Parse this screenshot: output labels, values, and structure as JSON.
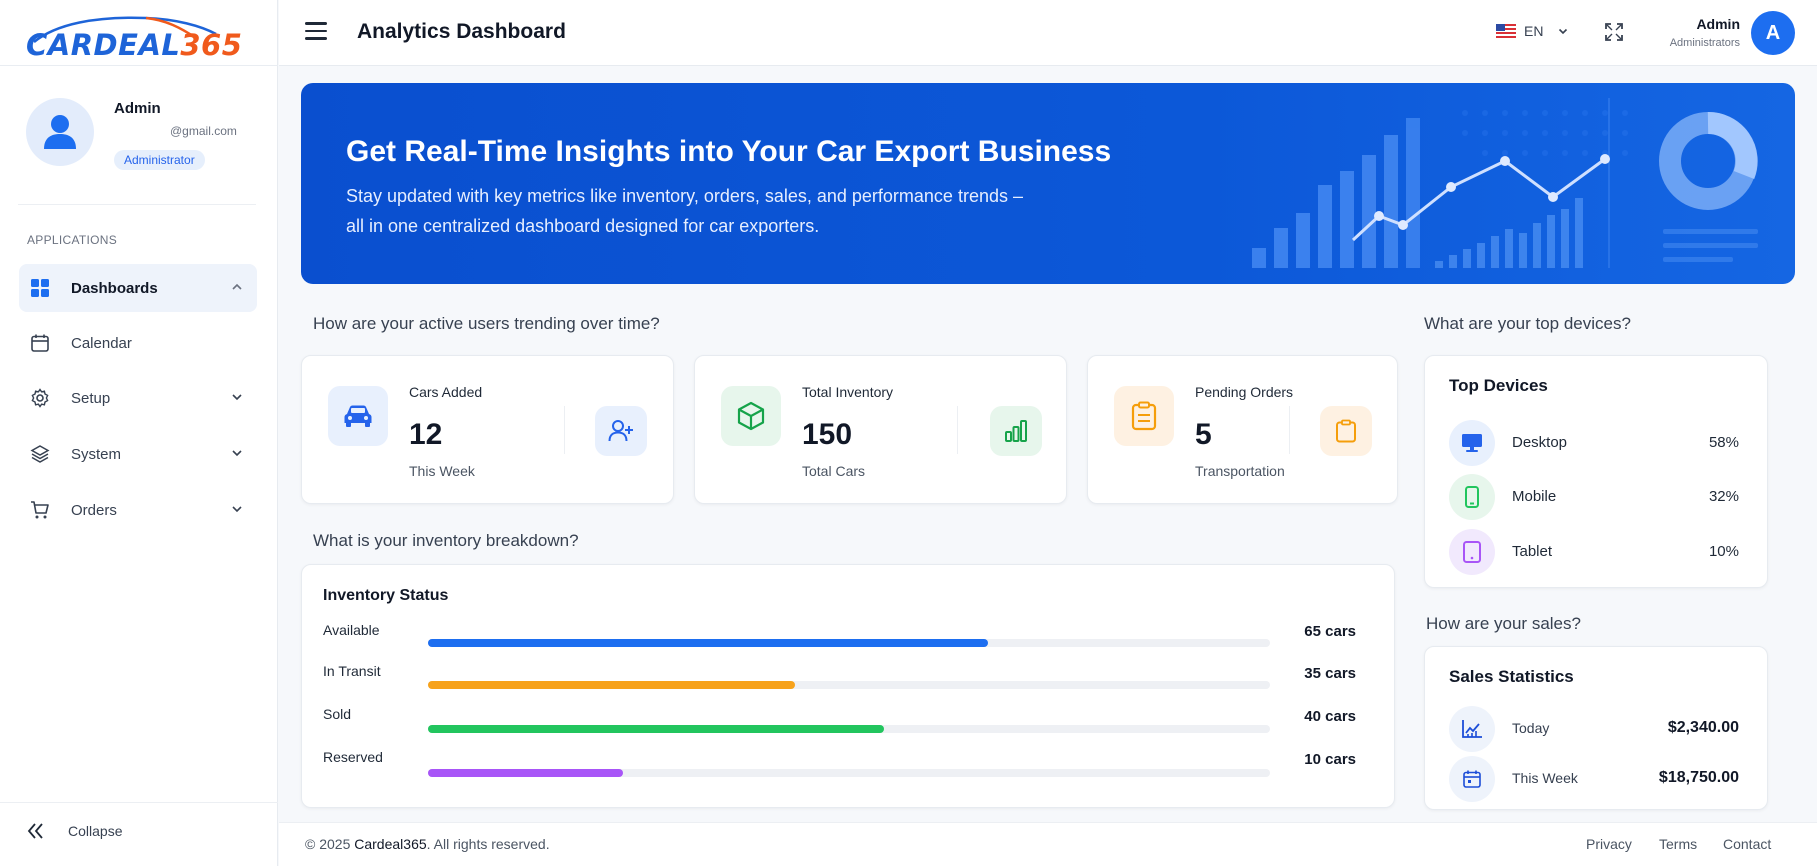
{
  "brand": {
    "logo_left": "CARDEAL",
    "logo_right": "365"
  },
  "profile": {
    "name": "Admin",
    "email": "@gmail.com",
    "role": "Administrator"
  },
  "sidebar": {
    "section": "APPLICATIONS",
    "items": [
      {
        "label": "Dashboards",
        "icon": "grid-icon",
        "active": true
      },
      {
        "label": "Calendar",
        "icon": "calendar-icon"
      },
      {
        "label": "Setup",
        "icon": "gear-icon"
      },
      {
        "label": "System",
        "icon": "layers-icon"
      },
      {
        "label": "Orders",
        "icon": "cart-icon"
      }
    ],
    "collapse_label": "Collapse"
  },
  "topbar": {
    "title": "Analytics Dashboard",
    "language": "EN",
    "user_name": "Admin",
    "user_role": "Administrators",
    "avatar_letter": "A"
  },
  "hero": {
    "title": "Get Real-Time Insights into Your Car Export Business",
    "subtitle_line1": "Stay updated with key metrics like inventory, orders, sales, and performance trends –",
    "subtitle_line2": "all in one centralized dashboard designed for car exporters."
  },
  "questions": {
    "users": "How are your active users trending over time?",
    "inventory": "What is your inventory breakdown?",
    "devices": "What are your top devices?",
    "sales": "How are your sales?"
  },
  "stats": [
    {
      "title": "Cars Added",
      "value": "12",
      "sub": "This Week",
      "color": "#2563eb",
      "bg": "#e8f0fd"
    },
    {
      "title": "Total Inventory",
      "value": "150",
      "sub": "Total Cars",
      "color": "#16a34a",
      "bg": "#e7f6ec"
    },
    {
      "title": "Pending Orders",
      "value": "5",
      "sub": "Transportation",
      "color": "#f59e0b",
      "bg": "#fef1e2"
    }
  ],
  "inventory": {
    "title": "Inventory Status",
    "rows": [
      {
        "label": "Available",
        "count": "65 cars",
        "fraction": 0.665,
        "color": "#1d6ef0"
      },
      {
        "label": "In Transit",
        "count": "35 cars",
        "fraction": 0.436,
        "color": "#f7a21b"
      },
      {
        "label": "Sold",
        "count": "40 cars",
        "fraction": 0.541,
        "color": "#22c55e"
      },
      {
        "label": "Reserved",
        "count": "10 cars",
        "fraction": 0.231,
        "color": "#a855f7"
      }
    ]
  },
  "devices": {
    "title": "Top Devices",
    "rows": [
      {
        "label": "Desktop",
        "pct": "58%",
        "color": "#2563eb",
        "bg": "#e8f0fd"
      },
      {
        "label": "Mobile",
        "pct": "32%",
        "color": "#22c55e",
        "bg": "#e7f6ec"
      },
      {
        "label": "Tablet",
        "pct": "10%",
        "color": "#a855f7",
        "bg": "#f1e9fd"
      }
    ]
  },
  "sales": {
    "title": "Sales Statistics",
    "rows": [
      {
        "label": "Today",
        "value": "$2,340.00"
      },
      {
        "label": "This Week",
        "value": "$18,750.00"
      }
    ]
  },
  "footer": {
    "copyright_prefix": "© 2025",
    "brand": "Cardeal365",
    "copyright_suffix": ". All rights reserved.",
    "links": [
      "Privacy",
      "Terms",
      "Contact"
    ]
  }
}
